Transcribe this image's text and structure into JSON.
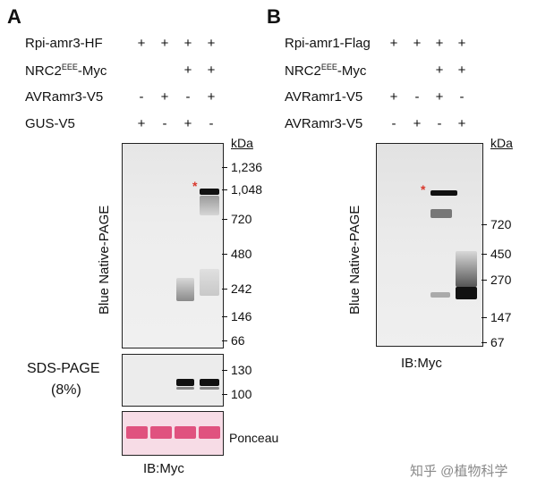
{
  "panelA": {
    "letter": "A",
    "rows": [
      {
        "label": "Rpi-amr3-HF",
        "signs": [
          "+",
          "+",
          "+",
          "+"
        ]
      },
      {
        "label": "NRC2EEE-Myc",
        "signs": [
          "",
          "",
          "+",
          "+"
        ]
      },
      {
        "label": "AVRamr3-V5",
        "signs": [
          "-",
          "+",
          "-",
          "+"
        ]
      },
      {
        "label": "GUS-V5",
        "signs": [
          "+",
          "-",
          "+",
          "-"
        ]
      }
    ],
    "kda": "kDa",
    "native_markers": [
      "1,236",
      "1,048",
      "720",
      "480",
      "242",
      "146",
      "66"
    ],
    "native_label": "Blue Native-PAGE",
    "sds_label_line1": "SDS-PAGE",
    "sds_label_line2": "(8%)",
    "sds_markers": [
      "130",
      "100"
    ],
    "ponceau_label": "Ponceau",
    "caption": "IB:Myc",
    "star": "*"
  },
  "panelB": {
    "letter": "B",
    "rows": [
      {
        "label": "Rpi-amr1-Flag",
        "signs": [
          "+",
          "+",
          "+",
          "+"
        ]
      },
      {
        "label": "NRC2EEE-Myc",
        "signs": [
          "",
          "",
          "+",
          "+"
        ]
      },
      {
        "label": "AVRamr1-V5",
        "signs": [
          "+",
          "-",
          "+",
          "-"
        ]
      },
      {
        "label": "AVRamr3-V5",
        "signs": [
          "-",
          "+",
          "-",
          "+"
        ]
      }
    ],
    "kda": "kDa",
    "native_markers": [
      "720",
      "450",
      "270",
      "147",
      "67"
    ],
    "native_label": "Blue Native-PAGE",
    "caption": "IB:Myc",
    "star": "*"
  },
  "watermark": "知乎 @植物科学"
}
